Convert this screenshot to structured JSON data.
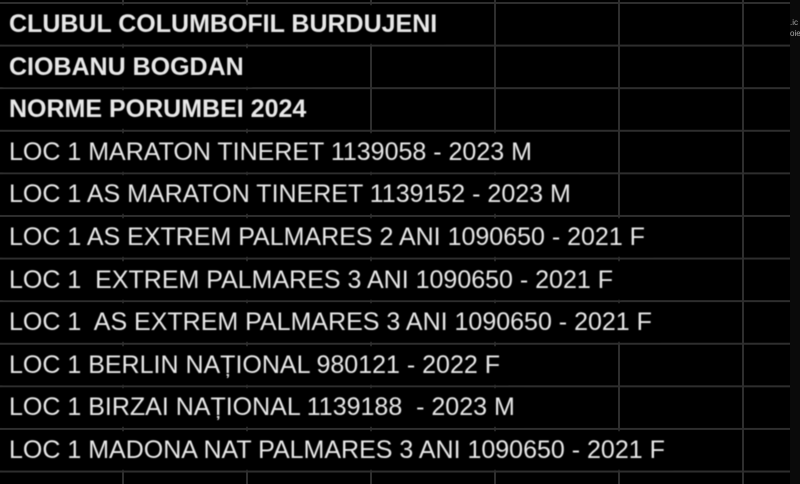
{
  "rows": [
    {
      "text": "CLUBUL COLUMBOFIL BURDUJENI",
      "bold": true
    },
    {
      "text": "CIOBANU BOGDAN",
      "bold": true
    },
    {
      "text": "NORME PORUMBEI 2024",
      "bold": true
    },
    {
      "text": "LOC 1 MARATON TINERET 1139058 - 2023 M"
    },
    {
      "text": "LOC 1 AS MARATON TINERET 1139152 - 2023 M"
    },
    {
      "text": "LOC 1 AS EXTREM PALMARES 2 ANI 1090650 - 2021 F"
    },
    {
      "text": "LOC 1  EXTREM PALMARES 3 ANI 1090650 - 2021 F"
    },
    {
      "text": "LOC 1  AS EXTREM PALMARES 3 ANI 1090650 - 2021 F"
    },
    {
      "text": "LOC 1 BERLIN NAȚIONAL 980121 - 2022 F"
    },
    {
      "text": "LOC 1 BIRZAI NAȚIONAL 1139188  - 2023 M"
    },
    {
      "text": "LOC 1 MADONA NAT PALMARES 3 ANI 1090650 - 2021 F"
    }
  ],
  "side_text": [
    ".ic",
    "oie"
  ]
}
